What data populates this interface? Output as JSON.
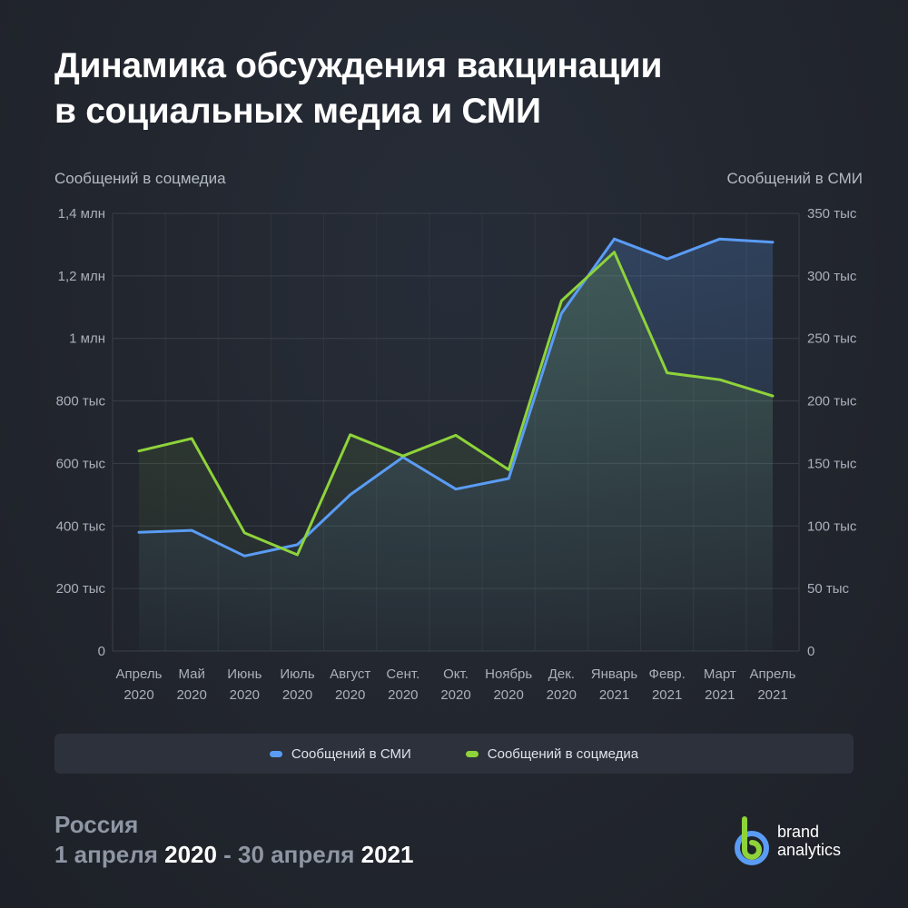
{
  "title": {
    "line1": "Динамика обсуждения вакцинации",
    "line2": "в социальных медиа и СМИ"
  },
  "axes": {
    "left_title": "Сообщений в соцмедиа",
    "right_title": "Сообщений в СМИ"
  },
  "chart_data": {
    "type": "line",
    "categories": [
      [
        "Апрель",
        "2020"
      ],
      [
        "Май",
        "2020"
      ],
      [
        "Июнь",
        "2020"
      ],
      [
        "Июль",
        "2020"
      ],
      [
        "Август",
        "2020"
      ],
      [
        "Сент.",
        "2020"
      ],
      [
        "Окт.",
        "2020"
      ],
      [
        "Ноябрь",
        "2020"
      ],
      [
        "Дек.",
        "2020"
      ],
      [
        "Январь",
        "2021"
      ],
      [
        "Февр.",
        "2021"
      ],
      [
        "Март",
        "2021"
      ],
      [
        "Апрель",
        "2021"
      ]
    ],
    "y_left": {
      "label": "Сообщений в соцмедиа",
      "ylim": [
        0,
        1400000
      ],
      "ticks": [
        {
          "value": 0,
          "label": "0"
        },
        {
          "value": 200000,
          "label": "200 тыс"
        },
        {
          "value": 400000,
          "label": "400 тыс"
        },
        {
          "value": 600000,
          "label": "600 тыс"
        },
        {
          "value": 800000,
          "label": "800 тыс"
        },
        {
          "value": 1000000,
          "label": "1 млн"
        },
        {
          "value": 1200000,
          "label": "1,2 млн"
        },
        {
          "value": 1400000,
          "label": "1,4 млн"
        }
      ]
    },
    "y_right": {
      "label": "Сообщений в СМИ",
      "ylim": [
        0,
        350000
      ],
      "ticks": [
        {
          "value": 0,
          "label": "0"
        },
        {
          "value": 50000,
          "label": "50 тыс"
        },
        {
          "value": 100000,
          "label": "100 тыс"
        },
        {
          "value": 150000,
          "label": "150 тыс"
        },
        {
          "value": 200000,
          "label": "200 тыс"
        },
        {
          "value": 250000,
          "label": "250 тыс"
        },
        {
          "value": 300000,
          "label": "300 тыс"
        },
        {
          "value": 350000,
          "label": "350 тыс"
        }
      ]
    },
    "series": [
      {
        "name": "Сообщений в СМИ",
        "axis": "right",
        "color": "#5a9cf5",
        "values": [
          95000,
          96500,
          76000,
          85000,
          125000,
          155000,
          129500,
          138000,
          270000,
          329500,
          313500,
          329500,
          327000
        ]
      },
      {
        "name": "Сообщений в соцмедиа",
        "axis": "left",
        "color": "#8ed33a",
        "values": [
          640000,
          680000,
          378000,
          308000,
          692000,
          624000,
          690000,
          580000,
          1120000,
          1276000,
          890000,
          868000,
          816000
        ]
      }
    ],
    "grid": true,
    "legend_position": "bottom"
  },
  "legend": {
    "items": [
      {
        "label": "Сообщений в СМИ",
        "color": "#5a9cf5"
      },
      {
        "label": "Сообщений в соцмедиа",
        "color": "#8ed33a"
      }
    ]
  },
  "footer": {
    "region": "Россия",
    "period_start_text": "1 апреля ",
    "period_start_year": "2020",
    "period_sep": " - 30 апреля ",
    "period_end_year": "2021"
  },
  "logo": {
    "line1": "brand",
    "line2": "analytics",
    "colors": {
      "b": "#8ed33a",
      "ring": "#5a9cf5"
    }
  }
}
